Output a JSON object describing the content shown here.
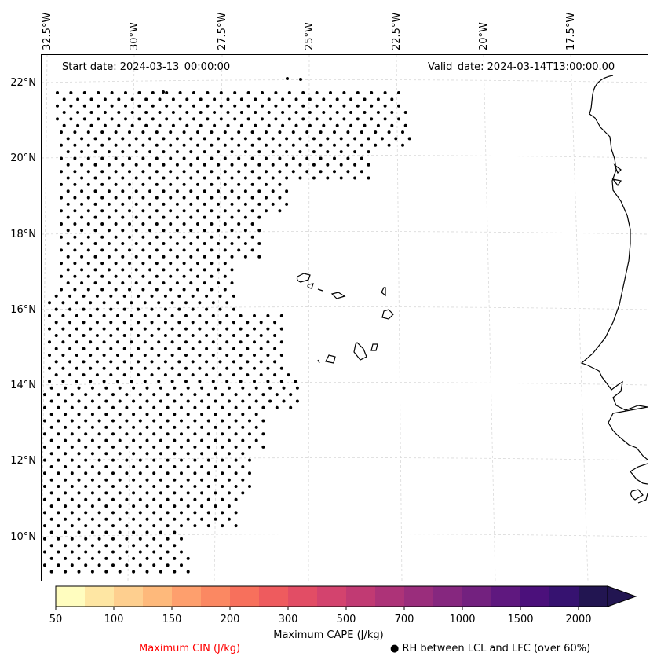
{
  "lon_labels": [
    "32.5°W",
    "30°W",
    "27.5°W",
    "25°W",
    "22.5°W",
    "20°W",
    "17.5°W"
  ],
  "lat_labels": [
    "22°N",
    "20°N",
    "18°N",
    "16°N",
    "14°N",
    "12°N",
    "10°N"
  ],
  "annotations": {
    "start_date": "Start date: 2024-03-13_00:00:00",
    "valid_date": "Valid_date: 2024-03-14T13:00:00.00"
  },
  "colorbar": {
    "title": "Maximum CAPE (J/kg)",
    "ticks": [
      "50",
      "100",
      "150",
      "200",
      "300",
      "500",
      "700",
      "1000",
      "1500",
      "2000"
    ],
    "colors": [
      "#fffdbf",
      "#fee6a3",
      "#fecf8f",
      "#feb97b",
      "#fe9f6d",
      "#fb8862",
      "#f7705c",
      "#ee5b5e",
      "#e24d65",
      "#d3436e",
      "#c13a73",
      "#ad3378",
      "#9a2d7c",
      "#86277f",
      "#73217f",
      "#5f187f",
      "#4b107b",
      "#361270",
      "#221551"
    ]
  },
  "legend": {
    "cin": "Maximum CIN (J/kg)",
    "rh": "RH between LCL and LFC (over 60%)",
    "rh_marker": "●",
    "cin_color": "#ff0000"
  }
}
